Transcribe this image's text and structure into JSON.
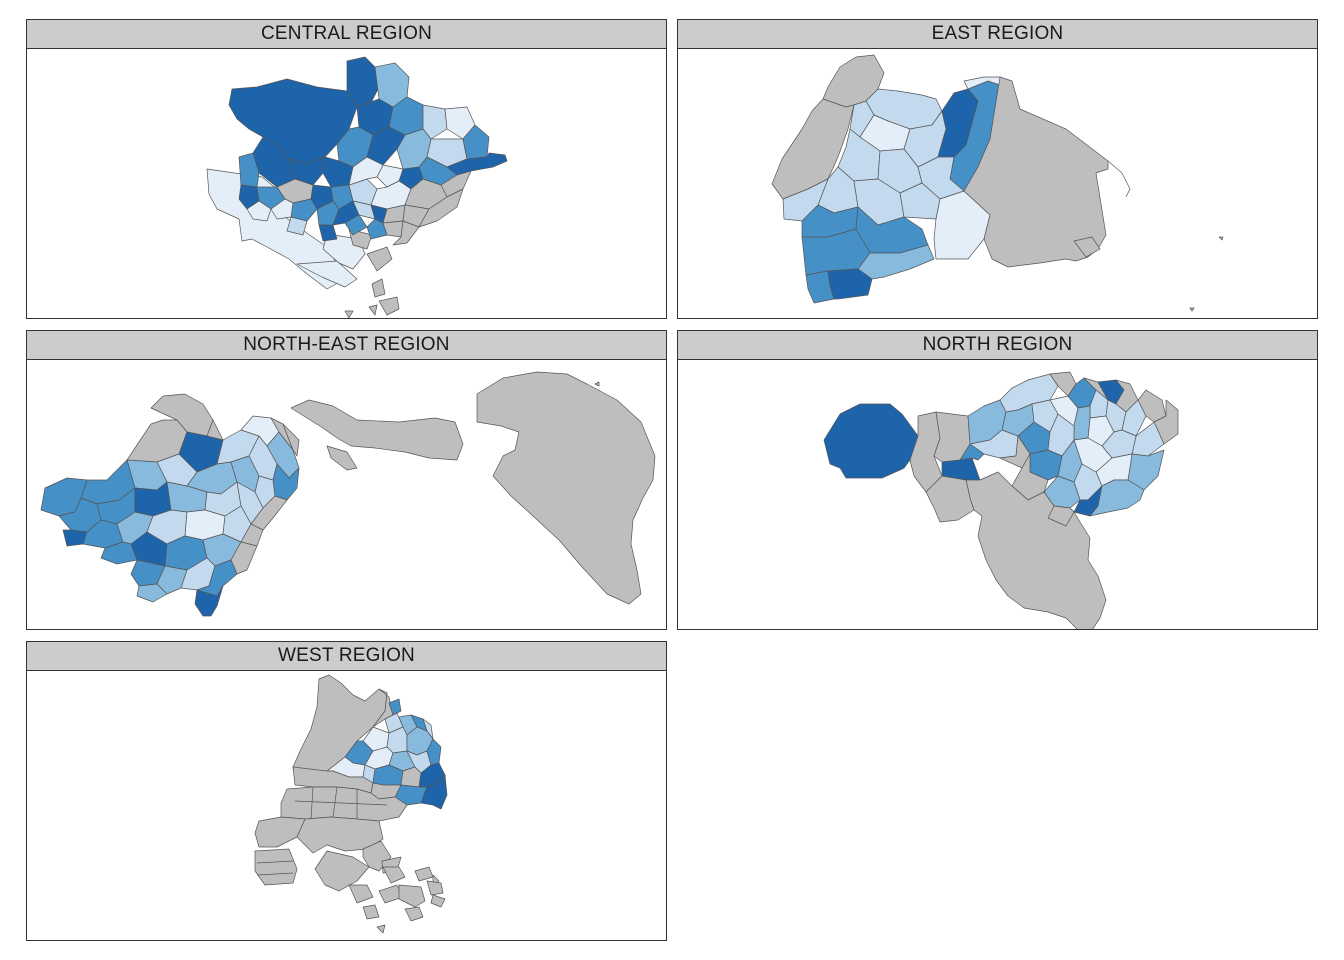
{
  "legend_colors": {
    "no_data": "#bebebe",
    "class_1": "#e4eef8",
    "class_2": "#c2d9ee",
    "class_3": "#87badd",
    "class_4": "#4690c8",
    "class_5": "#1d64ab"
  },
  "panels": [
    {
      "title": "CENTRAL REGION"
    },
    {
      "title": "EAST REGION"
    },
    {
      "title": "NORTH-EAST REGION"
    },
    {
      "title": "NORTH REGION"
    },
    {
      "title": "WEST REGION"
    }
  ]
}
